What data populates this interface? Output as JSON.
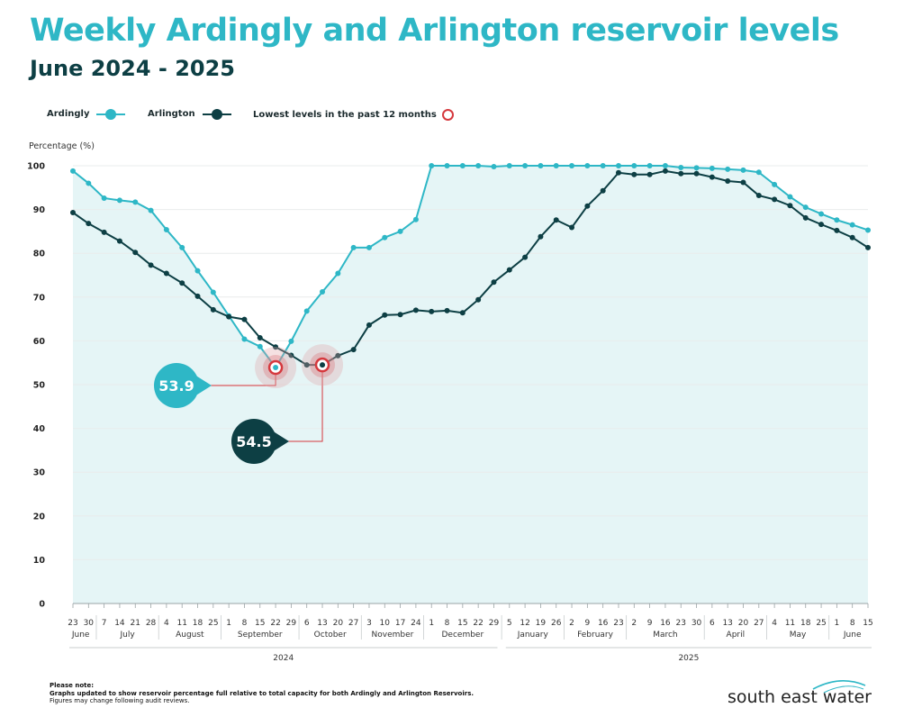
{
  "header": {
    "title": "Weekly Ardingly and Arlington reservoir levels",
    "subtitle": "June 2024 - 2025"
  },
  "legend": {
    "ardingly": "Ardingly",
    "arlington": "Arlington",
    "lowest": "Lowest levels in the past 12 months"
  },
  "colors": {
    "ardingly": "#2eb7c6",
    "arlington": "#0d3f44",
    "fill": "#e5f5f6",
    "marker": "#d5393e"
  },
  "chart_data": {
    "type": "line",
    "title": "Weekly Ardingly and Arlington reservoir levels",
    "ylabel": "Percentage (%)",
    "ylim": [
      0,
      100
    ],
    "yticks": [
      0,
      10,
      20,
      30,
      40,
      50,
      60,
      70,
      80,
      90,
      100
    ],
    "x": [
      "23",
      "30",
      "7",
      "14",
      "21",
      "28",
      "4",
      "11",
      "18",
      "25",
      "1",
      "8",
      "15",
      "22",
      "29",
      "6",
      "13",
      "20",
      "27",
      "3",
      "10",
      "17",
      "24",
      "1",
      "8",
      "15",
      "22",
      "29",
      "5",
      "12",
      "19",
      "26",
      "2",
      "9",
      "16",
      "23",
      "2",
      "9",
      "16",
      "23",
      "30",
      "6",
      "13",
      "20",
      "27",
      "4",
      "11",
      "18",
      "25",
      "1",
      "8",
      "15"
    ],
    "months": [
      {
        "label": "June",
        "start": 0,
        "end": 1
      },
      {
        "label": "July",
        "start": 2,
        "end": 5
      },
      {
        "label": "August",
        "start": 6,
        "end": 9
      },
      {
        "label": "September",
        "start": 10,
        "end": 14
      },
      {
        "label": "October",
        "start": 15,
        "end": 18
      },
      {
        "label": "November",
        "start": 19,
        "end": 22
      },
      {
        "label": "December",
        "start": 23,
        "end": 27
      },
      {
        "label": "January",
        "start": 28,
        "end": 31
      },
      {
        "label": "February",
        "start": 32,
        "end": 35
      },
      {
        "label": "March",
        "start": 36,
        "end": 40
      },
      {
        "label": "April",
        "start": 41,
        "end": 44
      },
      {
        "label": "May",
        "start": 45,
        "end": 48
      },
      {
        "label": "June",
        "start": 49,
        "end": 51
      }
    ],
    "years": [
      {
        "label": "2024",
        "start": 0,
        "end": 27
      },
      {
        "label": "2025",
        "start": 28,
        "end": 51
      }
    ],
    "series": [
      {
        "name": "Ardingly",
        "values": [
          98.8,
          96,
          92.6,
          92.1,
          91.7,
          89.8,
          85.4,
          81.3,
          76,
          71.1,
          65.7,
          60.4,
          58.7,
          53.9,
          59.9,
          66.8,
          71.2,
          75.4,
          81.3,
          81.3,
          83.6,
          85,
          87.7,
          100,
          100,
          100,
          100,
          99.8,
          100,
          100,
          100,
          100,
          100,
          100,
          100,
          100,
          100,
          100,
          100,
          99.6,
          99.5,
          99.4,
          99.2,
          99,
          98.5,
          95.7,
          92.9,
          90.5,
          89,
          87.6,
          86.5,
          85.3
        ]
      },
      {
        "name": "Arlington",
        "values": [
          89.3,
          86.8,
          84.8,
          82.8,
          80.2,
          77.3,
          75.4,
          73.2,
          70.2,
          67.1,
          65.5,
          64.9,
          60.7,
          58.6,
          56.7,
          54.5,
          54.5,
          56.6,
          58,
          63.6,
          65.9,
          66,
          67,
          66.7,
          66.9,
          66.4,
          69.4,
          73.4,
          76.2,
          79.1,
          83.8,
          87.6,
          85.9,
          90.8,
          94.3,
          98.4,
          98,
          98,
          98.8,
          98.2,
          98.2,
          97.4,
          96.5,
          96.2,
          93.2,
          92.3,
          90.9,
          88.1,
          86.6,
          85.2,
          83.6,
          81.3
        ]
      }
    ],
    "lowest": [
      {
        "series": "Ardingly",
        "index": 13,
        "label": "53.9"
      },
      {
        "series": "Arlington",
        "index": 16,
        "label": "54.5"
      }
    ]
  },
  "footer": {
    "note_heading": "Please note:",
    "note_line1": "Graphs updated to show reservoir percentage full relative to total capacity for both Ardingly and Arlington Reservoirs.",
    "note_line2": "Figures may change following audit reviews.",
    "brand": "south east water"
  }
}
